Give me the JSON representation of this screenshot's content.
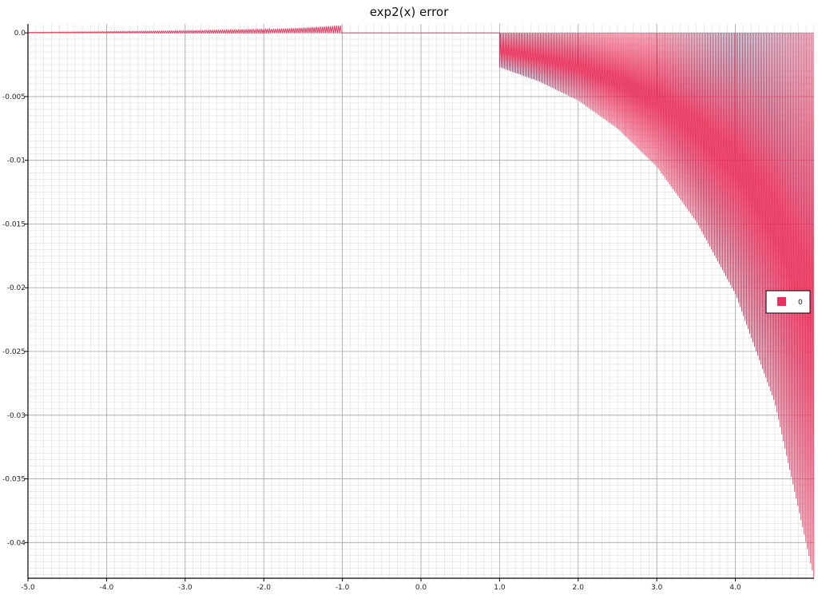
{
  "chart_data": {
    "type": "line",
    "title": "exp2(x) error",
    "xlabel": "",
    "ylabel": "",
    "xlim": [
      -5.0,
      5.0
    ],
    "ylim": [
      -0.0428,
      0.0007
    ],
    "grid": true,
    "x_ticks": [
      -5.0,
      -4.0,
      -3.0,
      -2.0,
      -1.0,
      0.0,
      1.0,
      2.0,
      3.0,
      4.0
    ],
    "x_tick_labels": [
      "-5.0",
      "-4.0",
      "-3.0",
      "-2.0",
      "-1.0",
      "0.0",
      "1.0",
      "2.0",
      "3.0",
      "4.0"
    ],
    "y_ticks": [
      0.0,
      -0.005,
      -0.01,
      -0.015,
      -0.02,
      -0.025,
      -0.03,
      -0.035,
      -0.04
    ],
    "y_tick_labels": [
      "0.0",
      "-0.005",
      "-0.01",
      "-0.015",
      "-0.02",
      "-0.025",
      "-0.03",
      "-0.035",
      "-0.04"
    ],
    "legend": {
      "placement": "right",
      "entries": [
        "0"
      ]
    },
    "series": [
      {
        "color": "#e8305a",
        "description_of_shape": [
          {
            "x_range": [
              -5.0,
              -1.0
            ],
            "upper_envelope": [
              [
                -5.0,
                5e-05
              ],
              [
                -4.0,
                0.0001
              ],
              [
                -3.0,
                0.00017
              ],
              [
                -2.0,
                0.00028
              ],
              [
                -1.5,
                0.0004
              ],
              [
                -1.0,
                0.0006
              ]
            ],
            "lower": 0.0
          },
          {
            "x_range": [
              -1.0,
              1.0
            ],
            "value": 0.0
          },
          {
            "x_range": [
              1.0,
              5.0
            ],
            "upper": 0.0,
            "lower_envelope": [
              [
                1.0,
                -0.0027
              ],
              [
                1.5,
                -0.0038
              ],
              [
                2.0,
                -0.0053
              ],
              [
                2.5,
                -0.0075
              ],
              [
                3.0,
                -0.0105
              ],
              [
                3.5,
                -0.0148
              ],
              [
                4.0,
                -0.0205
              ],
              [
                4.5,
                -0.029
              ],
              [
                5.0,
                -0.0428
              ]
            ]
          }
        ]
      }
    ]
  }
}
